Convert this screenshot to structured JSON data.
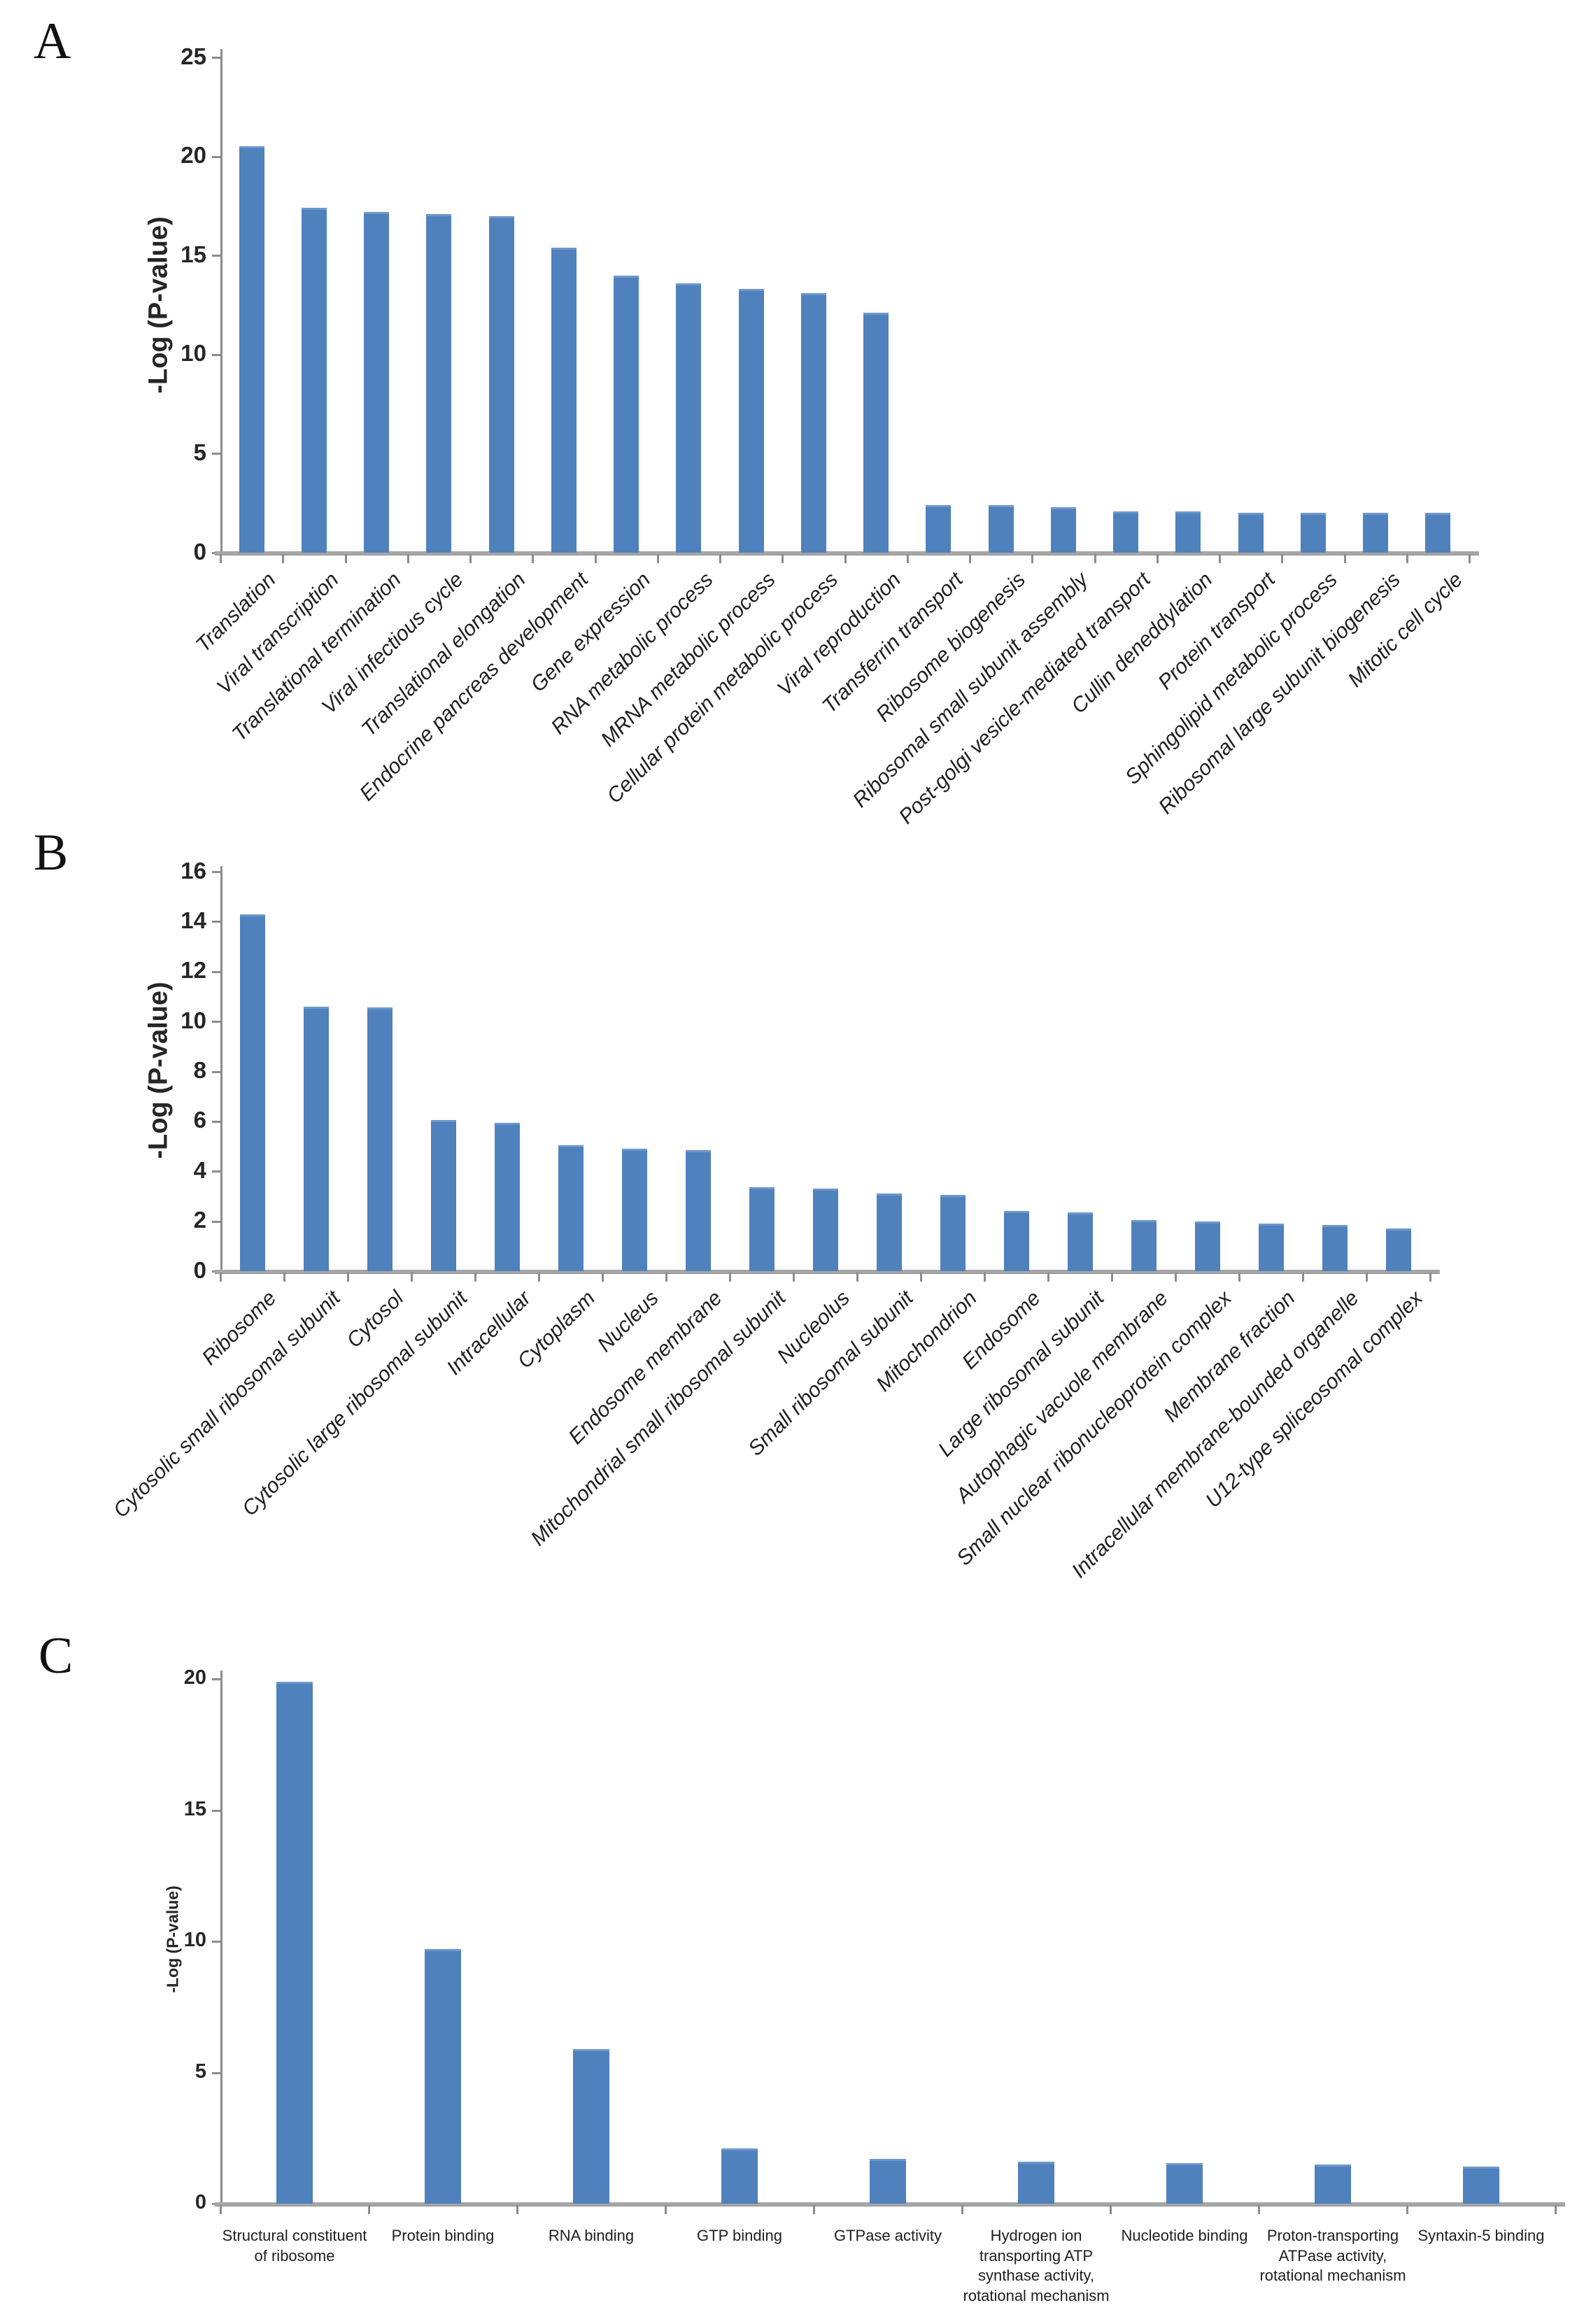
{
  "figure": {
    "background": "#ffffff",
    "bar_color": "#4f81bd",
    "axis_color": "#8c8c8c"
  },
  "chart_data": [
    {
      "type": "bar",
      "panel": "A",
      "title": "",
      "xlabel": "",
      "ylabel": "-Log (P-value)",
      "ylim": [
        0,
        25
      ],
      "ytick_step": 5,
      "yticks": [
        0,
        5,
        10,
        15,
        20,
        25
      ],
      "grid": false,
      "legend": false,
      "bar_color": "#4f81bd",
      "categories": [
        "Translation",
        "Viral transcription",
        "Translational termination",
        "Viral infectious cycle",
        "Translational elongation",
        "Endocrine pancreas development",
        "Gene expression",
        "RNA metabolic process",
        "MRNA metabolic process",
        "Cellular protein metabolic process",
        "Viral reproduction",
        "Transferrin transport",
        "Ribosome biogenesis",
        "Ribosomal small subunit assembly",
        "Post-golgi vesicle-mediated transport",
        "Cullin deneddylation",
        "Protein transport",
        "Sphingolipid metabolic process",
        "Ribosomal large subunit biogenesis",
        "Mitotic cell cycle"
      ],
      "values": [
        20.5,
        17.4,
        17.2,
        17.1,
        17.0,
        15.4,
        14.0,
        13.6,
        13.3,
        13.1,
        12.1,
        2.4,
        2.4,
        2.3,
        2.1,
        2.1,
        2.0,
        2.0,
        2.0,
        2.0
      ]
    },
    {
      "type": "bar",
      "panel": "B",
      "title": "",
      "xlabel": "",
      "ylabel": "-Log (P-value)",
      "ylim": [
        0,
        16
      ],
      "ytick_step": 2,
      "yticks": [
        0,
        2,
        4,
        6,
        8,
        10,
        12,
        14,
        16
      ],
      "grid": false,
      "legend": false,
      "bar_color": "#4f81bd",
      "categories": [
        "Ribosome",
        "Cytosolic small ribosomal subunit",
        "Cytosol",
        "Cytosolic large ribosomal subunit",
        "Intracellular",
        "Cytoplasm",
        "Nucleus",
        "Endosome membrane",
        "Mitochondrial small ribosomal subunit",
        "Nucleolus",
        "Small ribosomal subunit",
        "Mitochondrion",
        "Endosome",
        "Large ribosomal subunit",
        "Autophagic vacuole membrane",
        "Small nuclear ribonucleoprotein complex",
        "Membrane fraction",
        "Intracellular membrane-bounded organelle",
        "U12-type spliceosomal complex"
      ],
      "values": [
        14.3,
        10.6,
        10.55,
        6.05,
        5.95,
        5.05,
        4.9,
        4.85,
        3.35,
        3.3,
        3.1,
        3.05,
        2.4,
        2.35,
        2.05,
        2.0,
        1.9,
        1.85,
        1.7
      ]
    },
    {
      "type": "bar",
      "panel": "C",
      "title": "",
      "xlabel": "",
      "ylabel": "-Log (P-value)",
      "ylim": [
        0,
        20
      ],
      "ytick_step": 5,
      "yticks": [
        0,
        5,
        10,
        15,
        20
      ],
      "grid": false,
      "legend": false,
      "bar_color": "#4f81bd",
      "categories": [
        "Structural constituent of ribosome",
        "Protein binding",
        "RNA binding",
        "GTP binding",
        "GTPase activity",
        "Hydrogen ion transporting ATP synthase activity, rotational mechanism",
        "Nucleotide binding",
        "Proton-transporting ATPase activity, rotational mechanism",
        "Syntaxin-5 binding"
      ],
      "values": [
        19.9,
        9.7,
        5.9,
        2.1,
        1.7,
        1.6,
        1.55,
        1.5,
        1.4
      ]
    }
  ]
}
